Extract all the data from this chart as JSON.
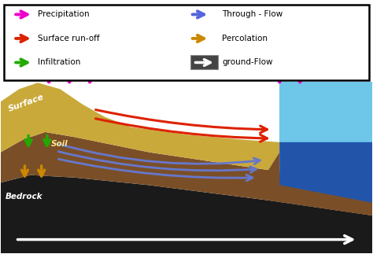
{
  "figsize": [
    4.74,
    3.23
  ],
  "dpi": 100,
  "bg_color": "#ffffff",
  "legend": {
    "left_items": [
      {
        "label": "Precipitation",
        "color": "#ee00cc"
      },
      {
        "label": "Surface run-off",
        "color": "#dd2200"
      },
      {
        "label": "Infiltration",
        "color": "#22aa00"
      }
    ],
    "right_items": [
      {
        "label": "Through - Flow",
        "color": "#5566dd"
      },
      {
        "label": "Percolation",
        "color": "#cc8800"
      },
      {
        "label": "ground-Flow",
        "color": "#ffffff",
        "bg": "#444444"
      }
    ]
  },
  "colors": {
    "surface_layer": "#c9a93a",
    "soil_layer": "#7a4f28",
    "bedrock_layer": "#1a1a1a",
    "water_light": "#6ec6e8",
    "water_dark": "#2255aa",
    "precipitation": "#ee00cc",
    "surface_runoff": "#dd2200",
    "infiltration": "#22aa00",
    "through_flow": "#6677cc",
    "percolation": "#cc8800",
    "ground_flow": "#ffffff"
  },
  "labels": {
    "surface": "Surface",
    "soil": "Soil",
    "bedrock": "Bedrock"
  }
}
